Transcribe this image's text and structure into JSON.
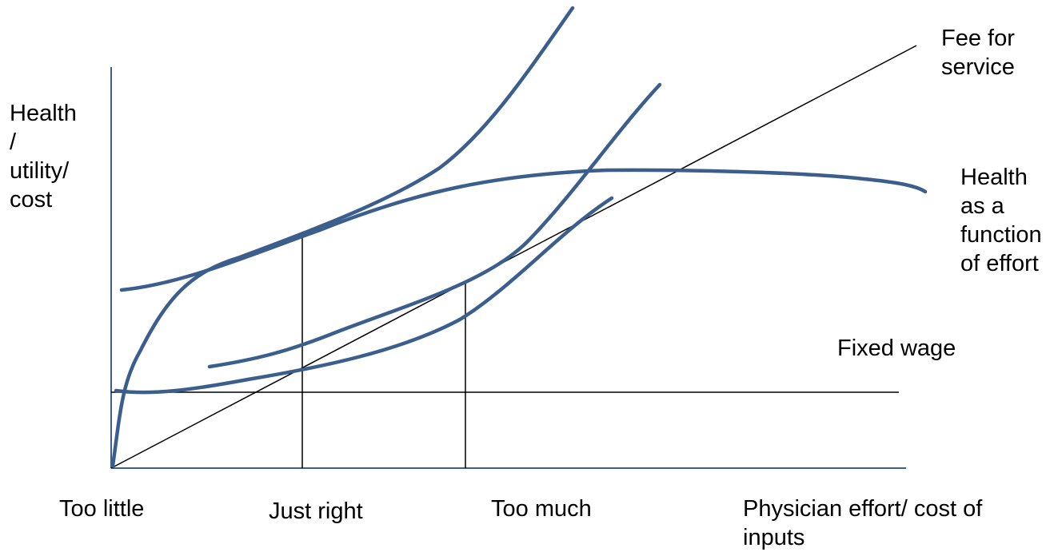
{
  "labels": {
    "y_axis": "Health\n/\nutility/\ncost",
    "fee_for_service": "Fee for\nservice",
    "health_function": "Health\nas a\nfunction\nof effort",
    "fixed_wage": "Fixed wage",
    "too_little": "Too little",
    "just_right": "Just right",
    "too_much": "Too much",
    "x_axis": "Physician effort/ cost of\ninputs"
  },
  "colors": {
    "curve": "#3B5E8C",
    "axis": "#3B5E8C",
    "line": "#000000",
    "text": "#000000"
  }
}
